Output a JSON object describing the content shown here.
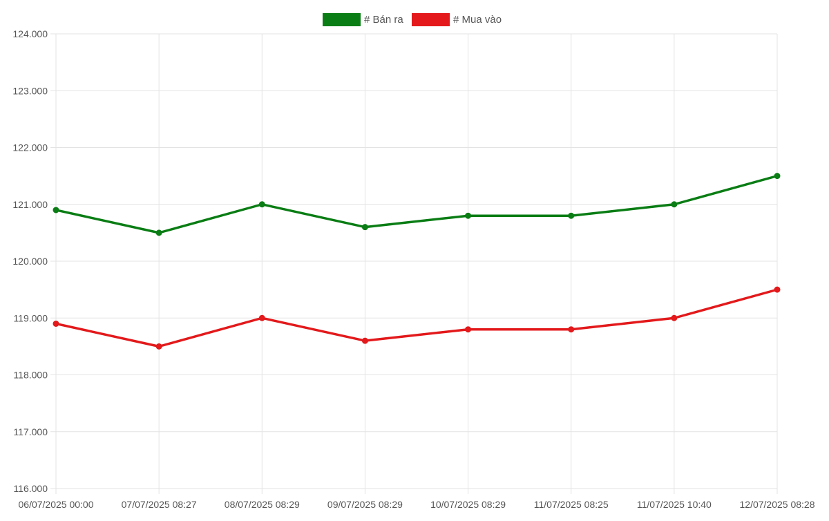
{
  "chart_data": {
    "type": "line",
    "categories": [
      "06/07/2025 00:00",
      "07/07/2025 08:27",
      "08/07/2025 08:29",
      "09/07/2025 08:29",
      "10/07/2025 08:29",
      "11/07/2025 08:25",
      "11/07/2025 10:40",
      "12/07/2025 08:28"
    ],
    "series": [
      {
        "name": "# Bán ra",
        "color": "#0a7d14",
        "values": [
          120900,
          120500,
          121000,
          120600,
          120800,
          120800,
          121000,
          121500
        ]
      },
      {
        "name": "# Mua vào",
        "color": "#e3191b",
        "values": [
          118900,
          118500,
          119000,
          118600,
          118800,
          118800,
          119000,
          119500
        ]
      }
    ],
    "y_ticks": [
      "116.000",
      "117.000",
      "118.000",
      "119.000",
      "120.000",
      "121.000",
      "122.000",
      "123.000",
      "124.000"
    ],
    "ylim": [
      116000,
      124000
    ],
    "grid": true,
    "legend_position": "top-center",
    "colors": {
      "grid": "#e3e3e3",
      "text": "#555555"
    }
  }
}
